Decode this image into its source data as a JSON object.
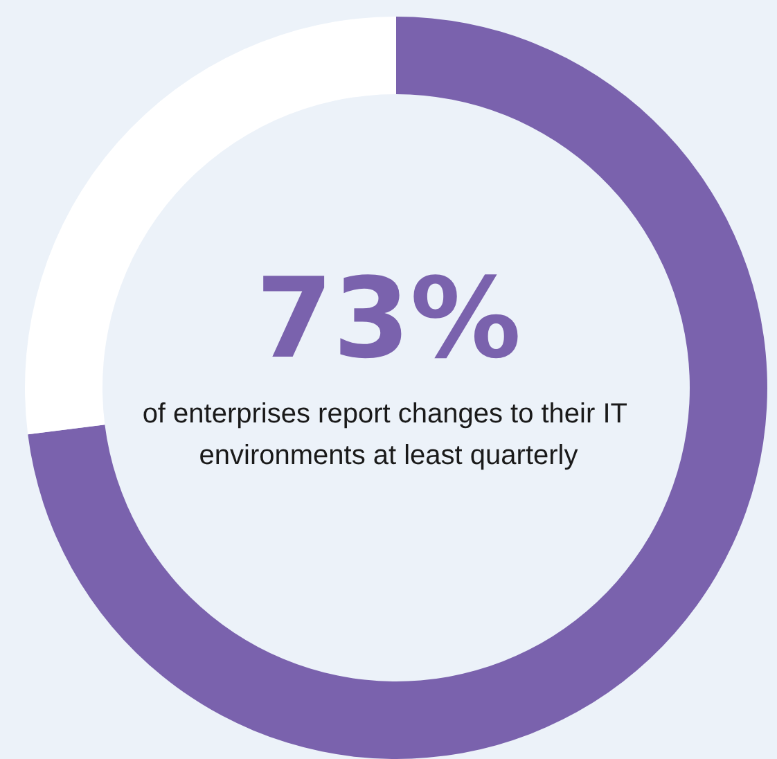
{
  "chart_data": {
    "type": "donut",
    "title": "73%",
    "subtitle": "of enterprises report changes to their IT environments at least quarterly",
    "categories": [
      null,
      null
    ],
    "values": [
      73,
      27
    ],
    "colors": [
      "#7a62ad",
      "#ffffff"
    ]
  }
}
